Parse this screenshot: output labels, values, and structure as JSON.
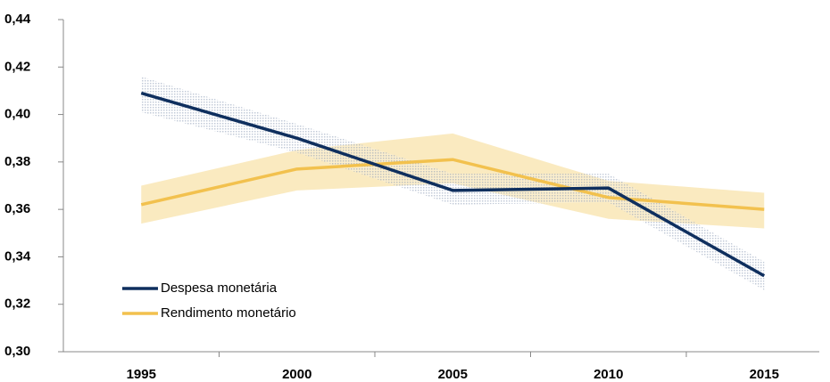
{
  "chart_data": {
    "type": "line",
    "categories": [
      "1995",
      "2000",
      "2005",
      "2010",
      "2015"
    ],
    "series": [
      {
        "name": "Despesa monetária",
        "color": "#0f2f5e",
        "band_color": "#9fb0c8",
        "values": [
          0.409,
          0.39,
          0.368,
          0.369,
          0.332
        ],
        "upper": [
          0.416,
          0.396,
          0.375,
          0.375,
          0.338
        ],
        "lower": [
          0.401,
          0.384,
          0.362,
          0.363,
          0.326
        ]
      },
      {
        "name": "Rendimento monetário",
        "color": "#f2c14e",
        "band_color": "#f7dc96",
        "values": [
          0.362,
          0.377,
          0.381,
          0.365,
          0.36
        ],
        "upper": [
          0.37,
          0.385,
          0.392,
          0.372,
          0.367
        ],
        "lower": [
          0.354,
          0.368,
          0.371,
          0.356,
          0.352
        ]
      }
    ],
    "ylim": [
      0.3,
      0.44
    ],
    "yticks": [
      {
        "value": 0.3,
        "label": "0,30"
      },
      {
        "value": 0.32,
        "label": "0,32"
      },
      {
        "value": 0.34,
        "label": "0,34"
      },
      {
        "value": 0.36,
        "label": "0,36"
      },
      {
        "value": 0.38,
        "label": "0,38"
      },
      {
        "value": 0.4,
        "label": "0,40"
      },
      {
        "value": 0.42,
        "label": "0,42"
      },
      {
        "value": 0.44,
        "label": "0,44"
      }
    ],
    "grid": false,
    "legend": "lower left"
  }
}
